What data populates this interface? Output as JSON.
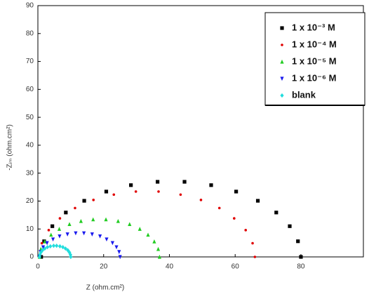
{
  "chart_data": {
    "type": "scatter",
    "x_label": "Z (ohm.cm²)",
    "y_label": "-Zᵢₘ (ohm.cm²)",
    "xlim": [
      0,
      99
    ],
    "ylim": [
      0,
      90
    ],
    "xticks": [
      0,
      20,
      40,
      60,
      80
    ],
    "yticks": [
      0,
      10,
      20,
      30,
      40,
      50,
      60,
      70,
      80,
      90
    ],
    "grid": false,
    "legend": "upper-right",
    "series": [
      {
        "name": "1 x 10⁻³ M",
        "color": "#000000",
        "marker": "square",
        "x": [
          1,
          1.9,
          4.4,
          8.5,
          14.1,
          20.8,
          28.3,
          36.4,
          44.6,
          52.7,
          60.3,
          66.9,
          72.5,
          76.6,
          79.1,
          80
        ],
        "values": [
          0,
          5.6,
          11,
          15.9,
          20.1,
          23.4,
          25.7,
          26.9,
          26.9,
          25.7,
          23.4,
          20.1,
          15.9,
          11,
          5.6,
          0
        ]
      },
      {
        "name": "1 x 10⁻⁴ M",
        "color": "#e00000",
        "marker": "circle",
        "x": [
          0.5,
          1.2,
          3.3,
          6.7,
          11.3,
          16.9,
          23.1,
          29.8,
          36.7,
          43.4,
          49.6,
          55.2,
          59.7,
          63.2,
          65.3,
          66
        ],
        "values": [
          0,
          4.9,
          9.6,
          13.8,
          17.5,
          20.4,
          22.3,
          23.4,
          23.4,
          22.3,
          20.4,
          17.5,
          13.8,
          9.6,
          4.9,
          0
        ]
      },
      {
        "name": "1 x 10⁻⁵ M",
        "color": "#22cc22",
        "marker": "triangle-up",
        "x": [
          0.5,
          0.9,
          2.1,
          4,
          6.5,
          9.6,
          13.1,
          16.8,
          20.7,
          24.4,
          27.9,
          31,
          33.5,
          35.4,
          36.6,
          37
        ],
        "values": [
          0,
          2.8,
          5.5,
          7.9,
          10,
          11.7,
          12.8,
          13.4,
          13.4,
          12.8,
          11.7,
          10,
          7.9,
          5.5,
          2.8,
          0
        ]
      },
      {
        "name": "1 x 10⁻⁶ M",
        "color": "#1a1aee",
        "marker": "triangle-down",
        "x": [
          0.5,
          0.8,
          1.6,
          2.8,
          4.6,
          6.6,
          9,
          11.5,
          14,
          16.5,
          18.9,
          20.9,
          22.7,
          23.9,
          24.7,
          25
        ],
        "values": [
          0,
          1.8,
          3.5,
          5,
          6.3,
          7.4,
          8.1,
          8.5,
          8.5,
          8.1,
          7.4,
          6.3,
          5,
          3.5,
          1.8,
          0
        ]
      },
      {
        "name": "blank",
        "color": "#22dddd",
        "marker": "diamond",
        "x": [
          0.5,
          0.6,
          0.9,
          1.4,
          2.1,
          2.9,
          3.8,
          4.8,
          5.7,
          6.7,
          7.6,
          8.4,
          9.1,
          9.6,
          9.9,
          10
        ],
        "values": [
          0,
          0.8,
          1.6,
          2.4,
          3,
          3.5,
          3.8,
          4,
          4,
          3.8,
          3.5,
          3,
          2.4,
          1.6,
          0.8,
          0
        ]
      }
    ]
  }
}
